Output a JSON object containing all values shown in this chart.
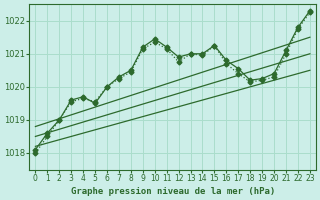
{
  "title": "Graphe pression niveau de la mer (hPa)",
  "bg_color": "#cceee8",
  "grid_color": "#aaddcc",
  "line_color": "#2d6a2d",
  "xlim": [
    -0.5,
    23.5
  ],
  "ylim": [
    1017.5,
    1022.5
  ],
  "yticks": [
    1018,
    1019,
    1020,
    1021,
    1022
  ],
  "xticks": [
    0,
    1,
    2,
    3,
    4,
    5,
    6,
    7,
    8,
    9,
    10,
    11,
    12,
    13,
    14,
    15,
    16,
    17,
    18,
    19,
    20,
    21,
    22,
    23
  ],
  "series1_x": [
    0,
    1,
    2,
    3,
    4,
    5,
    6,
    7,
    8,
    9,
    10,
    11,
    12,
    13,
    14,
    15,
    16,
    17,
    18,
    19,
    20,
    21,
    22,
    23
  ],
  "series1_y": [
    1018.1,
    1018.6,
    1019.0,
    1019.6,
    1019.7,
    1019.5,
    1020.0,
    1020.3,
    1020.5,
    1021.2,
    1021.45,
    1021.2,
    1020.9,
    1021.0,
    1021.0,
    1021.25,
    1020.8,
    1020.55,
    1020.2,
    1020.25,
    1020.4,
    1021.1,
    1021.8,
    1022.3
  ],
  "series2_x": [
    0,
    1,
    2,
    3,
    4,
    5,
    6,
    7,
    8,
    9,
    10,
    11,
    12,
    13,
    14,
    15,
    16,
    17,
    18,
    19,
    20,
    21,
    22,
    23
  ],
  "series2_y": [
    1018.0,
    1018.5,
    1019.0,
    1019.55,
    1019.65,
    1019.55,
    1020.0,
    1020.25,
    1020.45,
    1021.15,
    1021.35,
    1021.15,
    1020.75,
    1021.0,
    1020.95,
    1021.25,
    1020.7,
    1020.4,
    1020.15,
    1020.2,
    1020.3,
    1021.0,
    1021.75,
    1022.25
  ],
  "trend1_x": [
    0,
    23
  ],
  "trend1_y": [
    1018.8,
    1021.5
  ],
  "trend2_x": [
    0,
    23
  ],
  "trend2_y": [
    1018.5,
    1021.0
  ],
  "trend3_x": [
    0,
    23
  ],
  "trend3_y": [
    1018.2,
    1020.5
  ]
}
